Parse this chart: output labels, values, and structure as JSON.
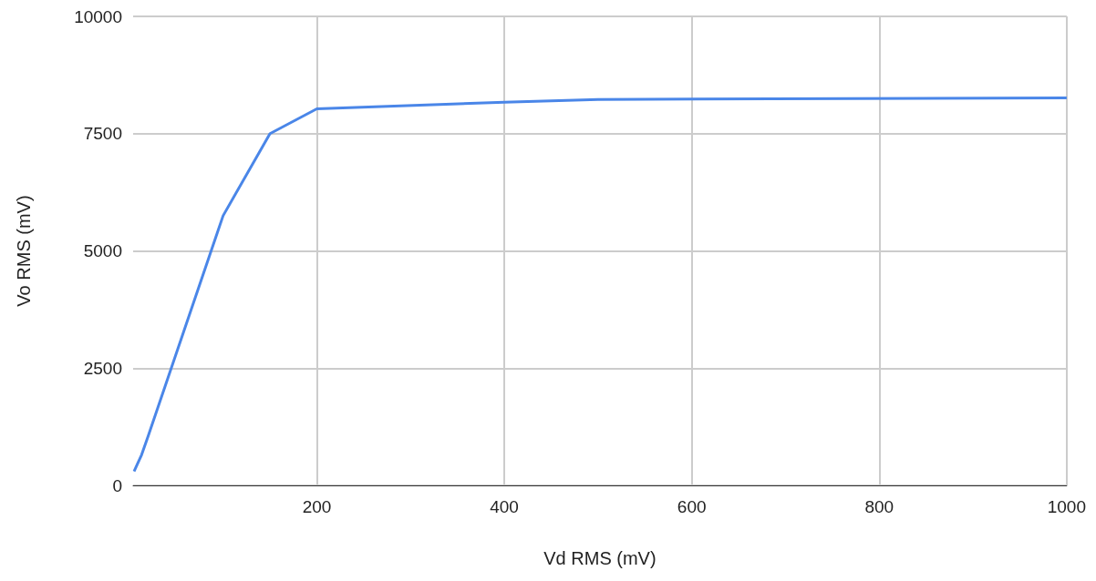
{
  "chart_data": {
    "type": "line",
    "xlabel": "Vd RMS (mV)",
    "ylabel": "Vo RMS (mV)",
    "x": [
      5,
      13,
      20,
      100,
      150,
      200,
      400,
      500,
      1000
    ],
    "series": [
      {
        "color": "#4a86e8",
        "values": [
          300,
          650,
          1050,
          5750,
          7500,
          8030,
          8170,
          8230,
          8260
        ]
      }
    ],
    "xlim": [
      4,
      1000
    ],
    "xticks": [
      200,
      400,
      600,
      800,
      1000
    ],
    "ylim": [
      0,
      10000
    ],
    "yticks": [
      0,
      2500,
      5000,
      7500,
      10000
    ],
    "grid": true,
    "marker": "none",
    "line_style": "solid"
  }
}
